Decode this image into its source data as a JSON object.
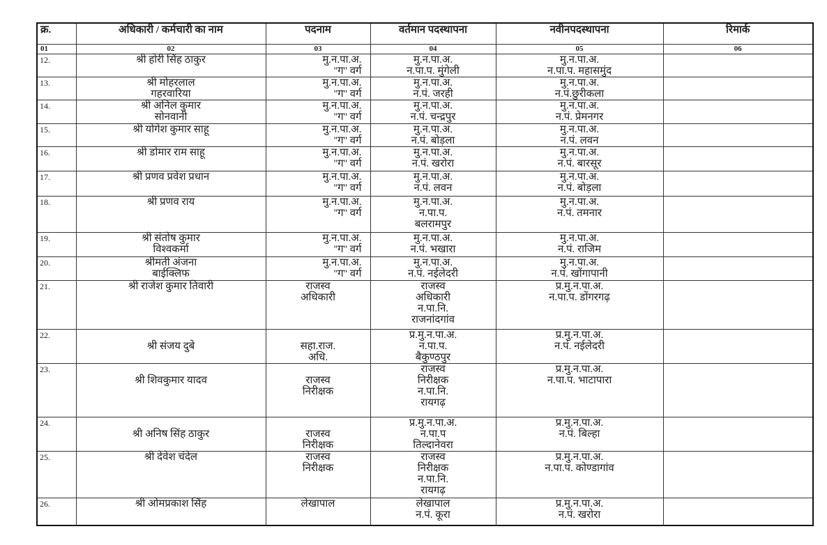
{
  "table": {
    "headers": [
      "क्र.",
      "अधिकारी / कर्मचारी का नाम",
      "पदनाम",
      "वर्तमान पदस्थापना",
      "नवीनपदस्थापना",
      "रिमार्क"
    ],
    "column_numbers": [
      "01",
      "02",
      "03",
      "04",
      "05",
      "06"
    ],
    "rows": [
      {
        "sr": "12.",
        "name": [
          "श्री होरी सिंह ठाकुर"
        ],
        "designation": [
          "मु.न.पा.अ.",
          "''ग'' वर्ग"
        ],
        "current": [
          "मु.न.पा.अ.",
          "न.पा.प. मुंगेली"
        ],
        "new": [
          "मु.न.पा.अ.",
          "न.पा.प. महासमुंद"
        ],
        "remark": ""
      },
      {
        "sr": "13.",
        "name": [
          "श्री मोहरलाल",
          "गहरवारिया"
        ],
        "designation": [
          "मु.न.पा.अ.",
          "''ग'' वर्ग"
        ],
        "current": [
          "मु.न.पा.अ.",
          "न.पं. जरही"
        ],
        "new": [
          "मु.न.पा.अ.",
          "न.पं.छुरीकला"
        ],
        "remark": ""
      },
      {
        "sr": "14.",
        "name": [
          "श्री अनिल कुमार",
          "सोनवानी"
        ],
        "designation": [
          "मु.न.पा.अ.",
          "''ग'' वर्ग"
        ],
        "current": [
          "मु.न.पा.अ.",
          "न.पं. चन्द्रपुर"
        ],
        "new": [
          "मु.न.पा.अ.",
          "न.पं. प्रेमनगर"
        ],
        "remark": ""
      },
      {
        "sr": "15.",
        "name": [
          "श्री योगेश कुमार साहू"
        ],
        "designation": [
          "मु.न.पा.अ.",
          "''ग'' वर्ग"
        ],
        "current": [
          "मु.न.पा.अ.",
          "न.पं. बोड़ला"
        ],
        "new": [
          "मु.न.पा.अ.",
          "न.पं. लवन"
        ],
        "remark": ""
      },
      {
        "sr": "16.",
        "name": [
          "श्री डोमार राम साहू"
        ],
        "designation": [
          "मु.न.पा.अ.",
          "''ग'' वर्ग"
        ],
        "current": [
          "मु.न.पा.अ.",
          "न.पं. खरोरा"
        ],
        "new": [
          "मु.न.पा.अ.",
          "न.पं. बारसूर"
        ],
        "remark": ""
      },
      {
        "sr": "17.",
        "name": [
          "श्री प्रणव प्रवेश प्रधान"
        ],
        "designation": [
          "मु.न.पा.अ.",
          "''ग'' वर्ग"
        ],
        "current": [
          "मु.न.पा.अ.",
          "न.पं. लवन"
        ],
        "new": [
          "मु.न.पा.अ.",
          "न.पं. बोड़ला"
        ],
        "remark": ""
      },
      {
        "sr": "18.",
        "name": [
          "श्री प्रणव राय"
        ],
        "designation": [
          "मु.न.पा.अ.",
          "''ग'' वर्ग"
        ],
        "current": [
          "मु.न.पा.अ.",
          "न.पा.प.",
          "बलरामपुर"
        ],
        "new": [
          "मु.न.पा.अ.",
          "न.पं. तमनार"
        ],
        "remark": ""
      },
      {
        "sr": "19.",
        "name": [
          "श्री संतोष कुमार",
          "विश्वकर्मा"
        ],
        "designation": [
          "मु.न.पा.अ.",
          "''ग'' वर्ग"
        ],
        "current": [
          "मु.न.पा.अ.",
          "न.पं. भखारा"
        ],
        "new": [
          "मु.न.पा.अ.",
          "न.पं. राजिम"
        ],
        "remark": ""
      },
      {
        "sr": "20.",
        "name": [
          "श्रीमती अंजना",
          "बाईक्लिफ"
        ],
        "designation": [
          "मु.न.पा.अ.",
          "''ग'' वर्ग"
        ],
        "current": [
          "मु.न.पा.अ.",
          "न.पं. नईलेदरी"
        ],
        "new": [
          "मु.न.पा.अ.",
          "न.पं. खोंगापानी"
        ],
        "remark": ""
      },
      {
        "sr": "21.",
        "name": [
          "श्री राजेश कुमार तिवारी"
        ],
        "designation": [
          "राजस्व",
          "अधिकारी"
        ],
        "current": [
          "राजस्व",
          "अधिकारी",
          "न.पा.नि.",
          "राजनांदगांव"
        ],
        "new": [
          "प्र.मु.न.पा.अ.",
          "न.पा.प. डोंगरगढ़"
        ],
        "remark": ""
      },
      {
        "sr": "22.",
        "name": [
          "",
          "श्री संजय दुबे"
        ],
        "designation": [
          "",
          "सहा.राज.",
          "अधि."
        ],
        "current": [
          "प्र.मु.न.पा.अ.",
          "न.पा.प.",
          "बैकुण्ठपुर"
        ],
        "new": [
          "प्र.मु.न.पा.अ.",
          "न.पं. नईलेदरी"
        ],
        "remark": ""
      },
      {
        "sr": "23.",
        "name": [
          "",
          "श्री शिवकुमार यादव"
        ],
        "designation": [
          "",
          "राजस्व",
          "निरीक्षक"
        ],
        "current": [
          "राजस्व",
          "निरीक्षक",
          "न.पा.नि.",
          "रायगढ़"
        ],
        "new": [
          "प्र.मु.न.पा.अ.",
          "न.पा.प. भाटापारा"
        ],
        "remark": ""
      },
      {
        "sr": "24.",
        "name": [
          "",
          "श्री अनिष सिंह ठाकुर"
        ],
        "designation": [
          "",
          "राजस्व",
          "निरीक्षक"
        ],
        "current": [
          "प्र.मु.न.पा.अ.",
          "न.पा.प",
          "तिल्दानेवरा"
        ],
        "new": [
          "प्र.मु.न.पा.अ.",
          "न.पं. बिल्हा"
        ],
        "remark": ""
      },
      {
        "sr": "25.",
        "name": [
          "श्री देवेश चंदेल"
        ],
        "designation": [
          "राजस्व",
          "निरीक्षक"
        ],
        "current": [
          "राजस्व",
          "निरीक्षक",
          "न.पा.नि.",
          "रायगढ़"
        ],
        "new": [
          "प्र.मु.न.पा.अ.",
          "न.पा.प. कोण्डागांव"
        ],
        "remark": ""
      },
      {
        "sr": "26.",
        "name": [
          "श्री ओमप्रकाश सिंह"
        ],
        "designation": [
          "लेखापाल"
        ],
        "current": [
          "लेखापाल",
          "न.पं. कूरा"
        ],
        "new": [
          "प्र.मु.न.पा.अ.",
          "न.पं. खरोरा"
        ],
        "remark": ""
      }
    ]
  }
}
